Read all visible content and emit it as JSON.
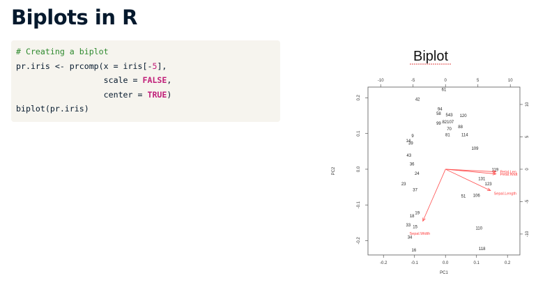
{
  "slide": {
    "title": "Biplots in R"
  },
  "code": {
    "lines": [
      [
        {
          "t": "# Creating a biplot",
          "c": "cmt"
        }
      ],
      [
        {
          "t": "pr.iris <- prcomp(x = iris[-",
          "c": ""
        },
        {
          "t": "5",
          "c": "num"
        },
        {
          "t": "],",
          "c": ""
        }
      ],
      [
        {
          "t": "                  scale = ",
          "c": ""
        },
        {
          "t": "FALSE",
          "c": "kw"
        },
        {
          "t": ",",
          "c": ""
        }
      ],
      [
        {
          "t": "                  center = ",
          "c": ""
        },
        {
          "t": "TRUE",
          "c": "kw"
        },
        {
          "t": ")",
          "c": ""
        }
      ],
      [
        {
          "t": "biplot(pr.iris)",
          "c": ""
        }
      ]
    ]
  },
  "chart_data": {
    "type": "scatter",
    "title": "Biplot",
    "xlabel": "PC1",
    "ylabel": "PC2",
    "xlim": [
      -0.25,
      0.24
    ],
    "ylim": [
      -0.24,
      0.23
    ],
    "bottom_ticks": [
      "-0.2",
      "-0.1",
      "0.0",
      "0.1",
      "0.2"
    ],
    "left_ticks": [
      "-0.2",
      "-0.1",
      "0.0",
      "0.1",
      "0.2"
    ],
    "top_ticks": [
      "-10",
      "-5",
      "0",
      "5",
      "10"
    ],
    "right_ticks": [
      "-10",
      "-5",
      "0",
      "5",
      "10"
    ],
    "points": [
      {
        "label": "61",
        "x": -0.005,
        "y": 0.222
      },
      {
        "label": "42",
        "x": -0.09,
        "y": 0.195
      },
      {
        "label": "94",
        "x": -0.018,
        "y": 0.168
      },
      {
        "label": "58",
        "x": -0.022,
        "y": 0.155
      },
      {
        "label": "543",
        "x": 0.012,
        "y": 0.151
      },
      {
        "label": "120",
        "x": 0.057,
        "y": 0.149
      },
      {
        "label": "99",
        "x": -0.022,
        "y": 0.128
      },
      {
        "label": "82107",
        "x": 0.008,
        "y": 0.132
      },
      {
        "label": "88",
        "x": 0.048,
        "y": 0.118
      },
      {
        "label": "70",
        "x": 0.012,
        "y": 0.112
      },
      {
        "label": "81",
        "x": 0.007,
        "y": 0.096
      },
      {
        "label": "114",
        "x": 0.062,
        "y": 0.096
      },
      {
        "label": "9",
        "x": -0.106,
        "y": 0.093
      },
      {
        "label": "14",
        "x": -0.12,
        "y": 0.079
      },
      {
        "label": "39",
        "x": -0.112,
        "y": 0.072
      },
      {
        "label": "109",
        "x": 0.095,
        "y": 0.058
      },
      {
        "label": "43",
        "x": -0.118,
        "y": 0.038
      },
      {
        "label": "36",
        "x": -0.108,
        "y": 0.014
      },
      {
        "label": "119",
        "x": 0.16,
        "y": -0.002
      },
      {
        "label": "24",
        "x": -0.092,
        "y": -0.013
      },
      {
        "label": "23",
        "x": -0.135,
        "y": -0.042
      },
      {
        "label": "37",
        "x": -0.098,
        "y": -0.058
      },
      {
        "label": "131",
        "x": 0.117,
        "y": -0.027
      },
      {
        "label": "123",
        "x": 0.138,
        "y": -0.042
      },
      {
        "label": "51",
        "x": 0.058,
        "y": -0.076
      },
      {
        "label": "106",
        "x": 0.1,
        "y": -0.074
      },
      {
        "label": "19",
        "x": -0.091,
        "y": -0.123
      },
      {
        "label": "18",
        "x": -0.108,
        "y": -0.132
      },
      {
        "label": "33",
        "x": -0.12,
        "y": -0.157
      },
      {
        "label": "15",
        "x": -0.098,
        "y": -0.162
      },
      {
        "label": "110",
        "x": 0.108,
        "y": -0.166
      },
      {
        "label": "34",
        "x": -0.115,
        "y": -0.191
      },
      {
        "label": "16",
        "x": -0.102,
        "y": -0.227
      },
      {
        "label": "118",
        "x": 0.118,
        "y": -0.223
      }
    ],
    "arrows": [
      {
        "label": "Petal.Len",
        "x": 0.185,
        "y": -0.008
      },
      {
        "label": "Petal.Widt",
        "x": 0.185,
        "y": -0.015
      },
      {
        "label": "Sepal.Length",
        "x": 0.165,
        "y": -0.068
      },
      {
        "label": "Sepal.Width",
        "x": -0.083,
        "y": -0.165
      }
    ]
  }
}
